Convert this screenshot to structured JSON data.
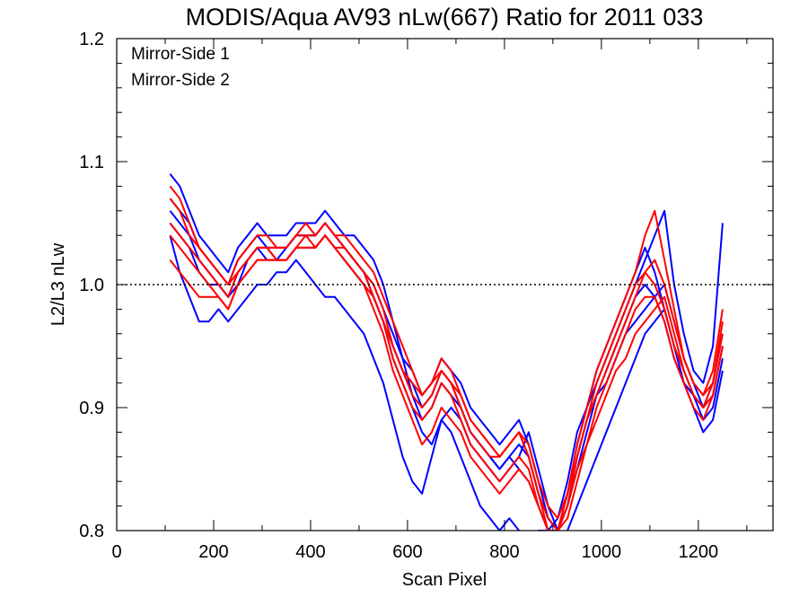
{
  "chart_data": {
    "type": "line",
    "title": "MODIS/Aqua AV93 nLw(667) Ratio for 2011 033",
    "xlabel": "Scan Pixel",
    "ylabel": "L2/L3 nLw",
    "xlim": [
      0,
      1354
    ],
    "ylim": [
      0.8,
      1.2
    ],
    "x_ticks": [
      0,
      200,
      400,
      600,
      800,
      1000,
      1200
    ],
    "x_tick_labels": [
      "0",
      "200",
      "400",
      "600",
      "800",
      "1000",
      "1200"
    ],
    "y_ticks": [
      0.8,
      0.9,
      1.0,
      1.1,
      1.2
    ],
    "y_tick_labels": [
      "0.8",
      "0.9",
      "1.0",
      "1.1",
      "1.2"
    ],
    "reference_line": {
      "y": 1.0,
      "style": "dotted"
    },
    "legend": {
      "position": "top-left"
    },
    "x": [
      110,
      130,
      150,
      170,
      190,
      210,
      230,
      250,
      270,
      290,
      310,
      330,
      350,
      370,
      390,
      410,
      430,
      450,
      470,
      490,
      510,
      530,
      550,
      570,
      590,
      610,
      630,
      650,
      670,
      690,
      710,
      730,
      750,
      770,
      790,
      810,
      830,
      850,
      870,
      890,
      910,
      930,
      950,
      970,
      990,
      1010,
      1030,
      1050,
      1070,
      1090,
      1110,
      1130,
      1150,
      1170,
      1190,
      1210,
      1230,
      1250
    ],
    "series": [
      {
        "name": "Mirror-Side 1",
        "color": "#0000ff",
        "lines": [
          [
            1.09,
            1.08,
            1.06,
            1.04,
            1.03,
            1.02,
            1.01,
            1.03,
            1.04,
            1.05,
            1.04,
            1.04,
            1.04,
            1.05,
            1.05,
            1.05,
            1.06,
            1.05,
            1.04,
            1.04,
            1.03,
            1.02,
            1.0,
            0.97,
            0.94,
            0.91,
            0.89,
            0.9,
            0.92,
            0.91,
            0.9,
            0.88,
            0.87,
            0.86,
            0.85,
            0.86,
            0.85,
            0.84,
            0.82,
            0.8,
            0.81,
            0.84,
            0.88,
            0.9,
            0.92,
            0.94,
            0.96,
            0.98,
            1.0,
            1.02,
            1.04,
            1.06,
            1.0,
            0.96,
            0.93,
            0.92,
            0.95,
            1.05
          ],
          [
            1.06,
            1.05,
            1.04,
            1.02,
            1.01,
            1.0,
            0.99,
            1.0,
            1.02,
            1.03,
            1.03,
            1.02,
            1.03,
            1.04,
            1.04,
            1.04,
            1.05,
            1.04,
            1.03,
            1.02,
            1.01,
            0.99,
            0.97,
            0.94,
            0.92,
            0.9,
            0.88,
            0.87,
            0.89,
            0.9,
            0.89,
            0.87,
            0.86,
            0.85,
            0.84,
            0.85,
            0.86,
            0.88,
            0.85,
            0.82,
            0.8,
            0.82,
            0.86,
            0.89,
            0.91,
            0.92,
            0.94,
            0.96,
            0.97,
            0.98,
            0.99,
            1.0,
            0.97,
            0.94,
            0.92,
            0.9,
            0.91,
            0.95
          ],
          [
            1.04,
            1.01,
            0.99,
            0.97,
            0.97,
            0.98,
            0.97,
            0.98,
            0.99,
            1.0,
            1.0,
            1.01,
            1.01,
            1.02,
            1.01,
            1.0,
            0.99,
            0.99,
            0.98,
            0.97,
            0.96,
            0.94,
            0.92,
            0.89,
            0.86,
            0.84,
            0.83,
            0.86,
            0.89,
            0.88,
            0.86,
            0.84,
            0.82,
            0.81,
            0.8,
            0.81,
            0.8,
            0.79,
            0.8,
            0.8,
            0.79,
            0.8,
            0.82,
            0.84,
            0.86,
            0.88,
            0.9,
            0.92,
            0.94,
            0.96,
            0.97,
            0.98,
            0.95,
            0.92,
            0.9,
            0.88,
            0.89,
            0.93
          ],
          [
            1.05,
            1.04,
            1.03,
            1.01,
            1.0,
            1.0,
            0.99,
            1.01,
            1.02,
            1.03,
            1.02,
            1.02,
            1.02,
            1.03,
            1.03,
            1.03,
            1.04,
            1.03,
            1.02,
            1.01,
            1.0,
            0.99,
            0.97,
            0.95,
            0.93,
            0.92,
            0.9,
            0.91,
            0.93,
            0.92,
            0.9,
            0.88,
            0.87,
            0.86,
            0.85,
            0.86,
            0.87,
            0.86,
            0.83,
            0.81,
            0.8,
            0.83,
            0.87,
            0.9,
            0.93,
            0.95,
            0.97,
            0.99,
            1.01,
            1.03,
            1.01,
            0.98,
            0.95,
            0.92,
            0.91,
            0.9,
            0.92,
            0.96
          ],
          [
            1.07,
            1.06,
            1.05,
            1.03,
            1.02,
            1.01,
            1.0,
            1.02,
            1.03,
            1.04,
            1.03,
            1.03,
            1.03,
            1.04,
            1.04,
            1.04,
            1.05,
            1.04,
            1.03,
            1.02,
            1.01,
            1.0,
            0.98,
            0.96,
            0.94,
            0.93,
            0.91,
            0.92,
            0.94,
            0.93,
            0.92,
            0.9,
            0.89,
            0.88,
            0.87,
            0.88,
            0.89,
            0.87,
            0.84,
            0.81,
            0.8,
            0.82,
            0.85,
            0.88,
            0.91,
            0.93,
            0.95,
            0.97,
            0.99,
            1.0,
            0.99,
            0.97,
            0.94,
            0.92,
            0.91,
            0.89,
            0.9,
            0.94
          ]
        ]
      },
      {
        "name": "Mirror-Side 2",
        "color": "#ff0000",
        "lines": [
          [
            1.08,
            1.07,
            1.05,
            1.03,
            1.02,
            1.01,
            1.0,
            1.02,
            1.03,
            1.04,
            1.04,
            1.03,
            1.03,
            1.04,
            1.05,
            1.04,
            1.05,
            1.04,
            1.04,
            1.03,
            1.02,
            1.01,
            0.99,
            0.97,
            0.95,
            0.93,
            0.91,
            0.92,
            0.94,
            0.93,
            0.91,
            0.89,
            0.88,
            0.87,
            0.86,
            0.87,
            0.88,
            0.86,
            0.83,
            0.8,
            0.8,
            0.83,
            0.87,
            0.9,
            0.93,
            0.95,
            0.97,
            0.99,
            1.01,
            1.04,
            1.06,
            1.02,
            0.98,
            0.94,
            0.92,
            0.91,
            0.93,
            0.98
          ],
          [
            1.02,
            1.01,
            1.0,
            0.99,
            0.99,
            0.99,
            0.98,
            1.0,
            1.01,
            1.02,
            1.02,
            1.02,
            1.02,
            1.03,
            1.03,
            1.03,
            1.04,
            1.03,
            1.02,
            1.01,
            1.0,
            0.98,
            0.96,
            0.93,
            0.91,
            0.89,
            0.87,
            0.88,
            0.9,
            0.89,
            0.88,
            0.86,
            0.85,
            0.84,
            0.83,
            0.84,
            0.85,
            0.84,
            0.82,
            0.8,
            0.8,
            0.82,
            0.85,
            0.87,
            0.89,
            0.91,
            0.93,
            0.94,
            0.96,
            0.97,
            0.98,
            0.99,
            0.96,
            0.93,
            0.91,
            0.9,
            0.91,
            0.95
          ],
          [
            1.05,
            1.04,
            1.03,
            1.02,
            1.01,
            1.0,
            0.99,
            1.01,
            1.02,
            1.03,
            1.03,
            1.03,
            1.03,
            1.04,
            1.04,
            1.04,
            1.05,
            1.04,
            1.03,
            1.02,
            1.01,
            1.0,
            0.98,
            0.95,
            0.93,
            0.91,
            0.9,
            0.91,
            0.93,
            0.92,
            0.9,
            0.88,
            0.87,
            0.86,
            0.86,
            0.87,
            0.88,
            0.86,
            0.83,
            0.81,
            0.8,
            0.82,
            0.86,
            0.89,
            0.92,
            0.94,
            0.96,
            0.98,
            1.0,
            1.01,
            1.0,
            0.98,
            0.95,
            0.93,
            0.91,
            0.9,
            0.92,
            0.97
          ],
          [
            1.07,
            1.06,
            1.04,
            1.03,
            1.02,
            1.01,
            1.0,
            1.01,
            1.02,
            1.03,
            1.03,
            1.02,
            1.02,
            1.03,
            1.04,
            1.03,
            1.04,
            1.03,
            1.03,
            1.02,
            1.01,
            0.99,
            0.97,
            0.95,
            0.93,
            0.92,
            0.91,
            0.92,
            0.93,
            0.92,
            0.91,
            0.89,
            0.88,
            0.87,
            0.86,
            0.87,
            0.88,
            0.87,
            0.84,
            0.82,
            0.81,
            0.83,
            0.86,
            0.89,
            0.91,
            0.93,
            0.95,
            0.97,
            0.99,
            1.01,
            1.02,
            1.0,
            0.97,
            0.94,
            0.92,
            0.91,
            0.92,
            0.96
          ],
          [
            1.04,
            1.03,
            1.02,
            1.01,
            1.0,
            0.99,
            0.98,
            1.0,
            1.01,
            1.02,
            1.02,
            1.02,
            1.02,
            1.03,
            1.03,
            1.03,
            1.04,
            1.03,
            1.02,
            1.01,
            1.0,
            0.99,
            0.97,
            0.94,
            0.92,
            0.9,
            0.89,
            0.9,
            0.92,
            0.91,
            0.89,
            0.87,
            0.86,
            0.85,
            0.84,
            0.85,
            0.86,
            0.85,
            0.82,
            0.8,
            0.8,
            0.81,
            0.84,
            0.87,
            0.9,
            0.92,
            0.94,
            0.96,
            0.98,
            0.99,
            0.99,
            0.97,
            0.94,
            0.92,
            0.9,
            0.89,
            0.91,
            0.95
          ]
        ]
      }
    ]
  }
}
